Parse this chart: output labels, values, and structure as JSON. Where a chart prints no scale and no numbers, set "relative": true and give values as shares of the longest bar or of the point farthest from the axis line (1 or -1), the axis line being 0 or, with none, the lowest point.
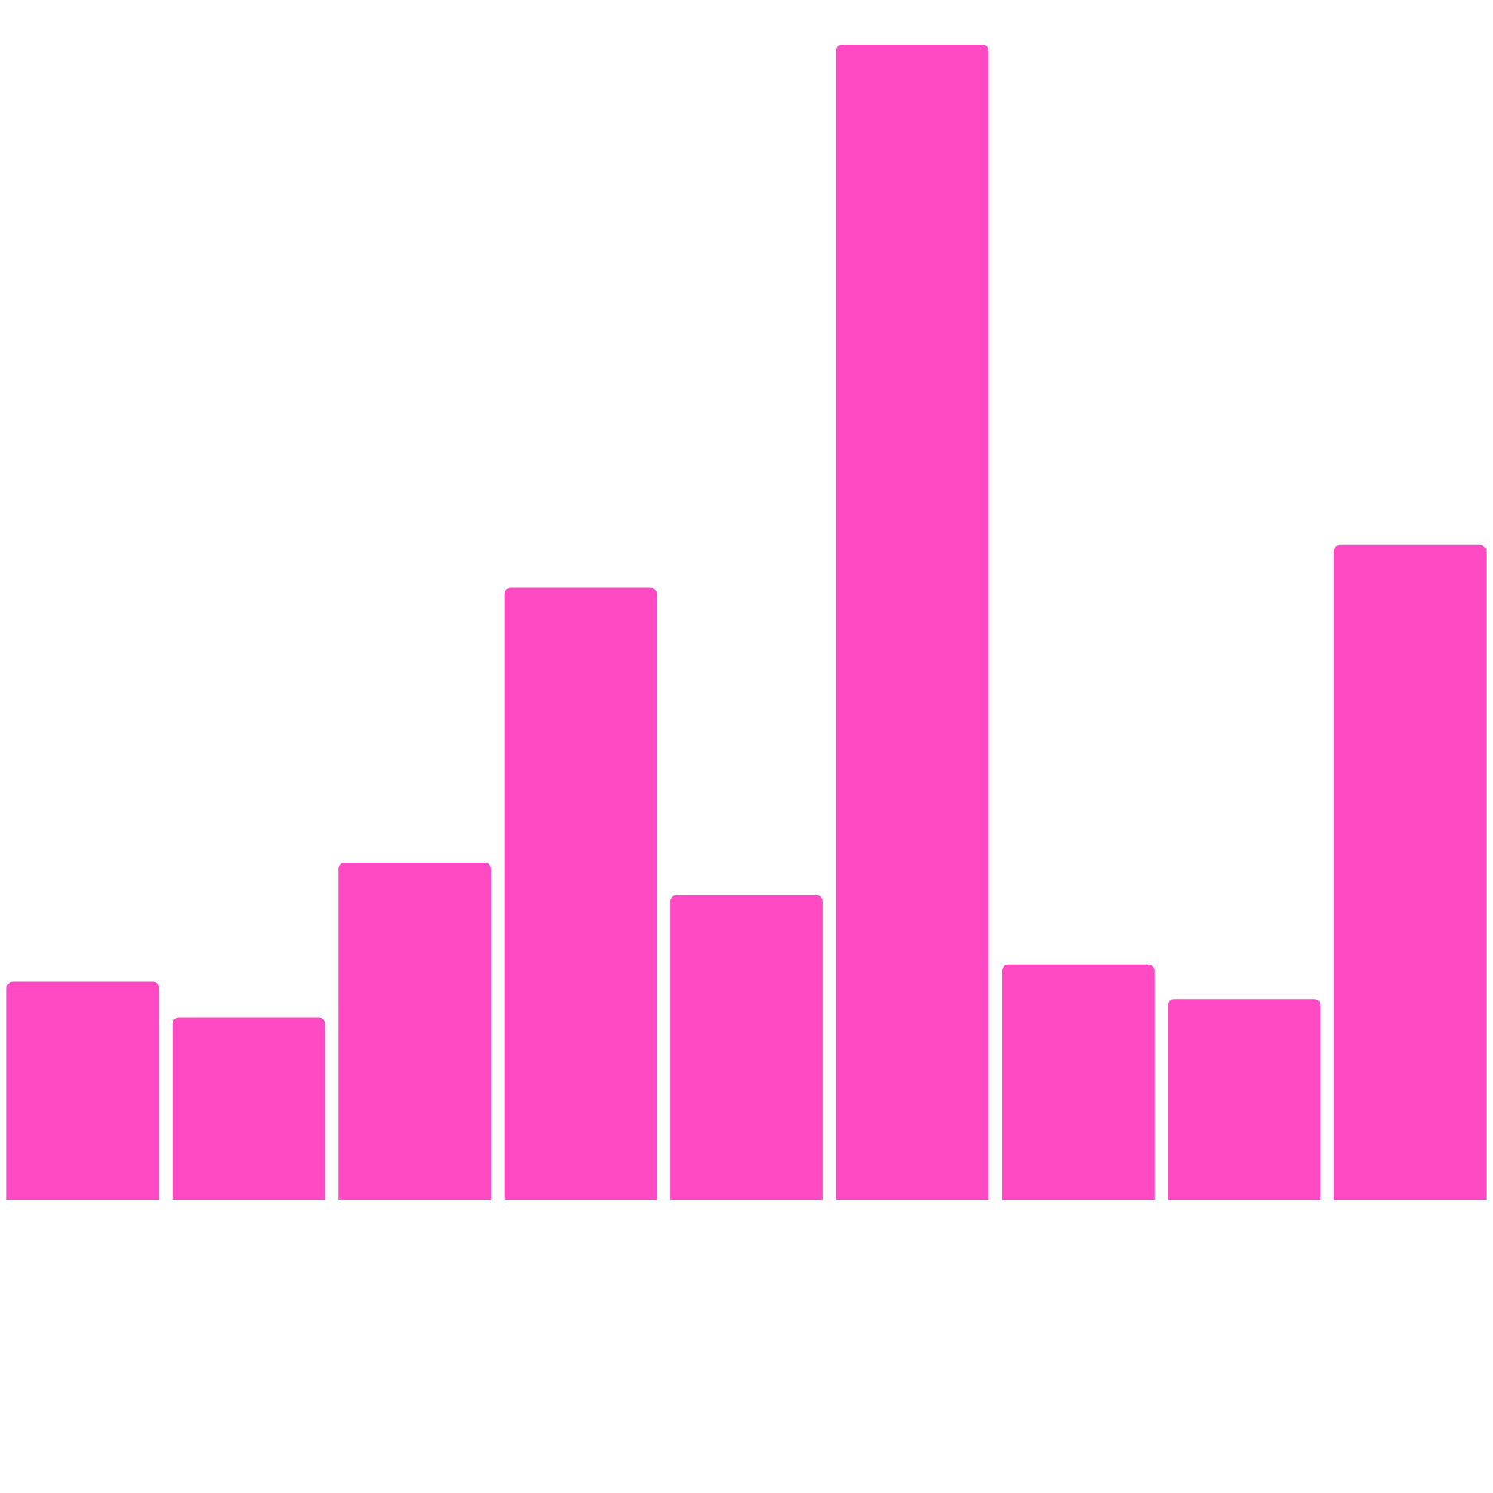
{
  "chart_data": {
    "type": "bar",
    "relative": true,
    "color": "#ff4ac4",
    "categories": [
      null,
      null,
      null,
      null,
      null,
      null,
      null,
      null,
      null
    ],
    "values": [
      0.189,
      0.158,
      0.292,
      0.53,
      0.264,
      1,
      0.204,
      0.174,
      0.567
    ]
  }
}
